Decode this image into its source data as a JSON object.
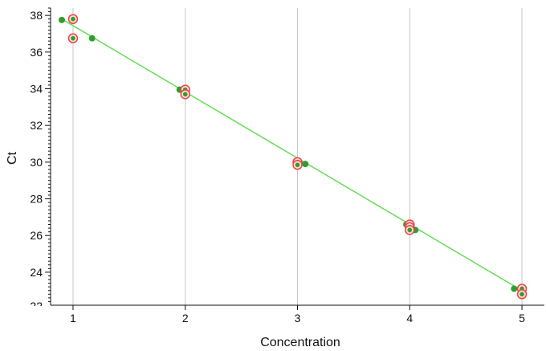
{
  "chart_data": {
    "type": "scatter",
    "title": "",
    "xlabel": "Concentration",
    "ylabel": "Ct",
    "xlim": [
      0.8,
      5.2
    ],
    "ylim": [
      22.2,
      38.4
    ],
    "x_ticks": [
      1,
      2,
      3,
      4,
      5
    ],
    "y_ticks": [
      24,
      26,
      28,
      30,
      32,
      34,
      36,
      38
    ],
    "y_bottom_label": "22",
    "grid": "vertical",
    "colors": {
      "fit_line": "#66dd55",
      "green_point": "#2e9e2e",
      "ring": "#ee4444",
      "ring_fill": "#ffd8d8",
      "grid": "#c8c8c8",
      "axis": "#111111"
    },
    "fit_line": {
      "x": [
        0.9,
        5.0
      ],
      "y": [
        37.8,
        23.0
      ]
    },
    "series": [
      {
        "marker": "green-dot",
        "points": [
          {
            "x": 0.9,
            "y": 37.75
          },
          {
            "x": 1.17,
            "y": 36.75
          },
          {
            "x": 1.95,
            "y": 33.95
          },
          {
            "x": 3.07,
            "y": 29.9
          },
          {
            "x": 3.97,
            "y": 26.6
          },
          {
            "x": 4.05,
            "y": 26.3
          },
          {
            "x": 4.93,
            "y": 23.1
          }
        ]
      },
      {
        "marker": "ringed-dot",
        "points": [
          {
            "x": 1.0,
            "y": 37.8
          },
          {
            "x": 1.0,
            "y": 36.75
          },
          {
            "x": 2.0,
            "y": 33.95
          },
          {
            "x": 2.0,
            "y": 33.7
          },
          {
            "x": 3.0,
            "y": 30.0
          },
          {
            "x": 3.0,
            "y": 29.85
          },
          {
            "x": 4.0,
            "y": 26.6
          },
          {
            "x": 4.0,
            "y": 26.45
          },
          {
            "x": 4.0,
            "y": 26.3
          },
          {
            "x": 5.0,
            "y": 23.1
          },
          {
            "x": 5.0,
            "y": 22.8
          }
        ]
      }
    ]
  }
}
